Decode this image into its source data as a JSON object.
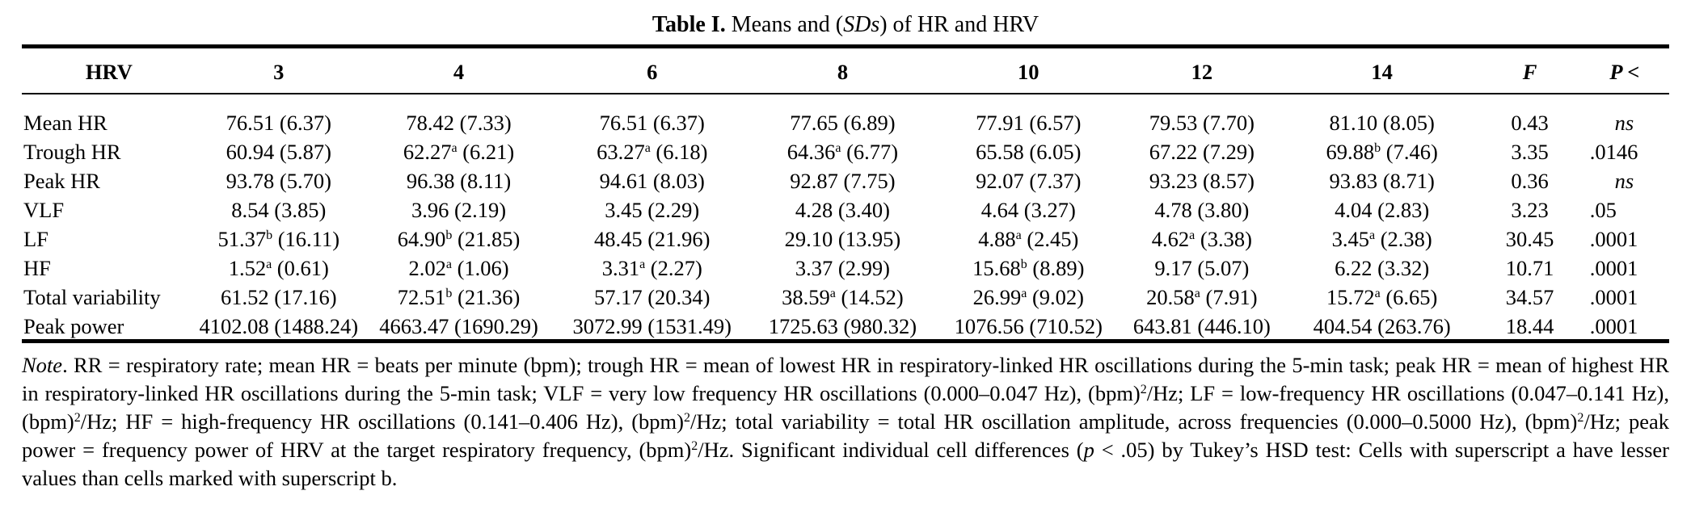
{
  "title": {
    "label": "Table I.",
    "text_before": "Means and (",
    "text_italic": "SDs",
    "text_after": ") of HR and HRV"
  },
  "columns": [
    "HRV",
    "3",
    "4",
    "6",
    "8",
    "10",
    "12",
    "14",
    "F",
    "P <"
  ],
  "rows": [
    {
      "label": "Mean HR",
      "cells": [
        {
          "m": "76.51",
          "sup": "",
          "sd": "(6.37)"
        },
        {
          "m": "78.42",
          "sup": "",
          "sd": "(7.33)"
        },
        {
          "m": "76.51",
          "sup": "",
          "sd": "(6.37)"
        },
        {
          "m": "77.65",
          "sup": "",
          "sd": "(6.89)"
        },
        {
          "m": "77.91",
          "sup": "",
          "sd": "(6.57)"
        },
        {
          "m": "79.53",
          "sup": "",
          "sd": "(7.70)"
        },
        {
          "m": "81.10",
          "sup": "",
          "sd": "(8.05)"
        }
      ],
      "F": "0.43",
      "P": "ns"
    },
    {
      "label": "Trough HR",
      "cells": [
        {
          "m": "60.94",
          "sup": "",
          "sd": "(5.87)"
        },
        {
          "m": "62.27",
          "sup": "a",
          "sd": "(6.21)"
        },
        {
          "m": "63.27",
          "sup": "a",
          "sd": "(6.18)"
        },
        {
          "m": "64.36",
          "sup": "a",
          "sd": "(6.77)"
        },
        {
          "m": "65.58",
          "sup": "",
          "sd": "(6.05)"
        },
        {
          "m": "67.22",
          "sup": "",
          "sd": "(7.29)"
        },
        {
          "m": "69.88",
          "sup": "b",
          "sd": "(7.46)"
        }
      ],
      "F": "3.35",
      "P": ".0146"
    },
    {
      "label": "Peak HR",
      "cells": [
        {
          "m": "93.78",
          "sup": "",
          "sd": "(5.70)"
        },
        {
          "m": "96.38",
          "sup": "",
          "sd": "(8.11)"
        },
        {
          "m": "94.61",
          "sup": "",
          "sd": "(8.03)"
        },
        {
          "m": "92.87",
          "sup": "",
          "sd": "(7.75)"
        },
        {
          "m": "92.07",
          "sup": "",
          "sd": "(7.37)"
        },
        {
          "m": "93.23",
          "sup": "",
          "sd": "(8.57)"
        },
        {
          "m": "93.83",
          "sup": "",
          "sd": "(8.71)"
        }
      ],
      "F": "0.36",
      "P": "ns"
    },
    {
      "label": "VLF",
      "cells": [
        {
          "m": "8.54",
          "sup": "",
          "sd": "(3.85)"
        },
        {
          "m": "3.96",
          "sup": "",
          "sd": "(2.19)"
        },
        {
          "m": "3.45",
          "sup": "",
          "sd": "(2.29)"
        },
        {
          "m": "4.28",
          "sup": "",
          "sd": "(3.40)"
        },
        {
          "m": "4.64",
          "sup": "",
          "sd": "(3.27)"
        },
        {
          "m": "4.78",
          "sup": "",
          "sd": "(3.80)"
        },
        {
          "m": "4.04",
          "sup": "",
          "sd": "(2.83)"
        }
      ],
      "F": "3.23",
      "P": ".05"
    },
    {
      "label": "LF",
      "cells": [
        {
          "m": "51.37",
          "sup": "b",
          "sd": "(16.11)"
        },
        {
          "m": "64.90",
          "sup": "b",
          "sd": "(21.85)"
        },
        {
          "m": "48.45",
          "sup": "",
          "sd": "(21.96)"
        },
        {
          "m": "29.10",
          "sup": "",
          "sd": "(13.95)"
        },
        {
          "m": "4.88",
          "sup": "a",
          "sd": "(2.45)"
        },
        {
          "m": "4.62",
          "sup": "a",
          "sd": "(3.38)"
        },
        {
          "m": "3.45",
          "sup": "a",
          "sd": "(2.38)"
        }
      ],
      "F": "30.45",
      "P": ".0001"
    },
    {
      "label": "HF",
      "cells": [
        {
          "m": "1.52",
          "sup": "a",
          "sd": "(0.61)"
        },
        {
          "m": "2.02",
          "sup": "a",
          "sd": "(1.06)"
        },
        {
          "m": "3.31",
          "sup": "a",
          "sd": "(2.27)"
        },
        {
          "m": "3.37",
          "sup": "",
          "sd": "(2.99)"
        },
        {
          "m": "15.68",
          "sup": "b",
          "sd": "(8.89)"
        },
        {
          "m": "9.17",
          "sup": "",
          "sd": "(5.07)"
        },
        {
          "m": "6.22",
          "sup": "",
          "sd": "(3.32)"
        }
      ],
      "F": "10.71",
      "P": ".0001"
    },
    {
      "label": "Total variability",
      "cells": [
        {
          "m": "61.52",
          "sup": "",
          "sd": "(17.16)"
        },
        {
          "m": "72.51",
          "sup": "b",
          "sd": "(21.36)"
        },
        {
          "m": "57.17",
          "sup": "",
          "sd": "(20.34)"
        },
        {
          "m": "38.59",
          "sup": "a",
          "sd": "(14.52)"
        },
        {
          "m": "26.99",
          "sup": "a",
          "sd": "(9.02)"
        },
        {
          "m": "20.58",
          "sup": "a",
          "sd": "(7.91)"
        },
        {
          "m": "15.72",
          "sup": "a",
          "sd": "(6.65)"
        }
      ],
      "F": "34.57",
      "P": ".0001"
    },
    {
      "label": "Peak power",
      "cells": [
        {
          "m": "4102.08",
          "sup": "",
          "sd": "(1488.24)"
        },
        {
          "m": "4663.47",
          "sup": "",
          "sd": "(1690.29)"
        },
        {
          "m": "3072.99",
          "sup": "",
          "sd": "(1531.49)"
        },
        {
          "m": "1725.63",
          "sup": "",
          "sd": "(980.32)"
        },
        {
          "m": "1076.56",
          "sup": "",
          "sd": "(710.52)"
        },
        {
          "m": "643.81",
          "sup": "",
          "sd": "(446.10)"
        },
        {
          "m": "404.54",
          "sup": "",
          "sd": "(263.76)"
        }
      ],
      "F": "18.44",
      "P": ".0001"
    }
  ],
  "note": [
    {
      "t": "Note",
      "i": true
    },
    {
      "t": ". RR = respiratory rate; mean HR = beats per minute (bpm); trough HR = mean of lowest HR in respiratory-linked HR oscillations during the 5-min task; peak HR = mean of highest HR in respiratory-linked HR oscillations during the 5-min task; VLF = very low frequency HR oscillations (0.000–0.047 Hz), (bpm)"
    },
    {
      "t": "2",
      "s": true
    },
    {
      "t": "/Hz; LF = low-frequency HR oscillations (0.047–0.141 Hz), (bpm)"
    },
    {
      "t": "2",
      "s": true
    },
    {
      "t": "/Hz; HF = high-frequency HR oscillations (0.141–0.406 Hz), (bpm)"
    },
    {
      "t": "2",
      "s": true
    },
    {
      "t": "/Hz; total variability = total HR oscillation amplitude, across frequencies (0.000–0.5000 Hz), (bpm)"
    },
    {
      "t": "2",
      "s": true
    },
    {
      "t": "/Hz; peak power = frequency power of HRV at the target respiratory frequency, (bpm)"
    },
    {
      "t": "2",
      "s": true
    },
    {
      "t": "/Hz. Significant individual cell differences ("
    },
    {
      "t": "p",
      "i": true
    },
    {
      "t": " < .05) by Tukey’s HSD test: Cells with superscript a have lesser values than cells marked with superscript b."
    }
  ]
}
